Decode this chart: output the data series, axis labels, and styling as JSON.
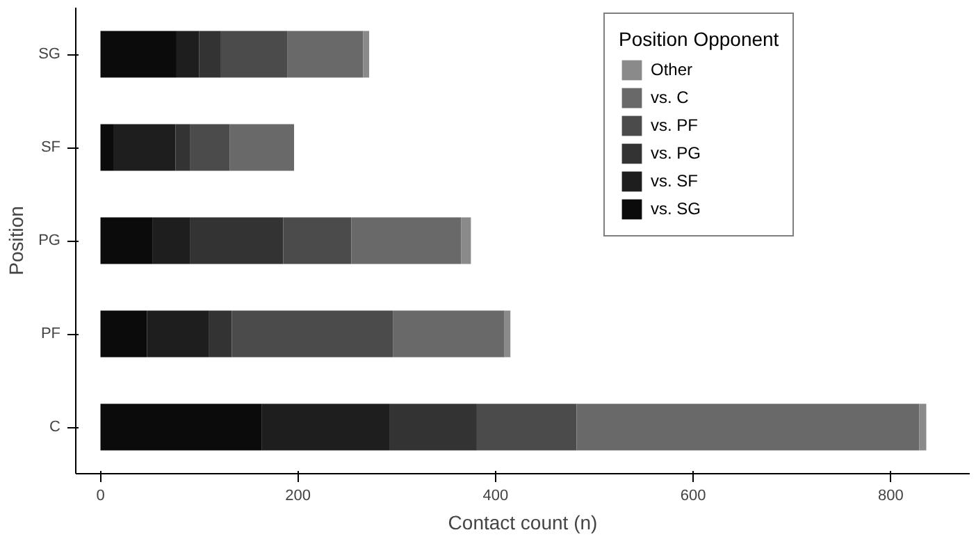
{
  "chart_data": {
    "type": "bar",
    "orientation": "horizontal",
    "stacked": true,
    "categories": [
      "SG",
      "SF",
      "PG",
      "PF",
      "C"
    ],
    "series": [
      {
        "name": "vs. SG",
        "color": "#0b0b0b",
        "values": [
          77,
          13,
          53,
          47,
          163
        ]
      },
      {
        "name": "vs. SF",
        "color": "#1e1e1e",
        "values": [
          23,
          63,
          38,
          63,
          130
        ]
      },
      {
        "name": "vs. PG",
        "color": "#333333",
        "values": [
          22,
          15,
          94,
          23,
          88
        ]
      },
      {
        "name": "vs. PF",
        "color": "#4b4b4b",
        "values": [
          67,
          40,
          69,
          163,
          101
        ]
      },
      {
        "name": "vs. C",
        "color": "#696969",
        "values": [
          77,
          65,
          111,
          113,
          347
        ]
      },
      {
        "name": "Other",
        "color": "#8a8a8a",
        "values": [
          6,
          null,
          10,
          6,
          7
        ]
      }
    ],
    "xlabel": "Contact count (n)",
    "ylabel": "Position",
    "legend_title": "Position Opponent",
    "xlim": [
      -25,
      880
    ],
    "xticks": [
      0,
      200,
      400,
      600,
      800
    ],
    "legend": "right",
    "grid": false
  }
}
